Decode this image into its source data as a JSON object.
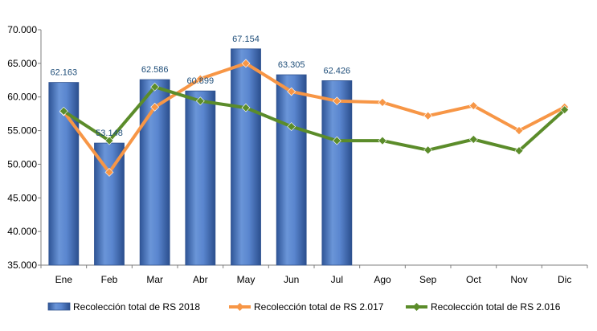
{
  "chart_data": {
    "type": "bar",
    "categories": [
      "Ene",
      "Feb",
      "Mar",
      "Abr",
      "May",
      "Jun",
      "Jul",
      "Ago",
      "Sep",
      "Oct",
      "Nov",
      "Dic"
    ],
    "y_tick_labels": [
      "35.000",
      "40.000",
      "45.000",
      "50.000",
      "55.000",
      "60.000",
      "65.000",
      "70.000"
    ],
    "ylim": [
      35000,
      70000
    ],
    "grid": false,
    "legend_position": "bottom",
    "series": [
      {
        "name": "Recolección total de RS 2018",
        "type": "bar",
        "color": "#4472C4",
        "values": [
          62163,
          53148,
          62586,
          60899,
          67154,
          63305,
          62426,
          null,
          null,
          null,
          null,
          null
        ],
        "data_labels": [
          "62.163",
          "53.148",
          "62.586",
          "60.899",
          "67.154",
          "63.305",
          "62.426"
        ]
      },
      {
        "name": "Recolección total de RS 2.017",
        "type": "line",
        "color": "#F79646",
        "values": [
          57800,
          48800,
          58500,
          62700,
          65000,
          60800,
          59400,
          59200,
          57200,
          58700,
          55000,
          58500
        ]
      },
      {
        "name": "Recolección total de RS 2.016",
        "type": "line",
        "color": "#5B8C2A",
        "values": [
          57900,
          53500,
          61500,
          59400,
          58400,
          55600,
          53500,
          53500,
          52100,
          53700,
          52000,
          58100
        ]
      }
    ]
  }
}
